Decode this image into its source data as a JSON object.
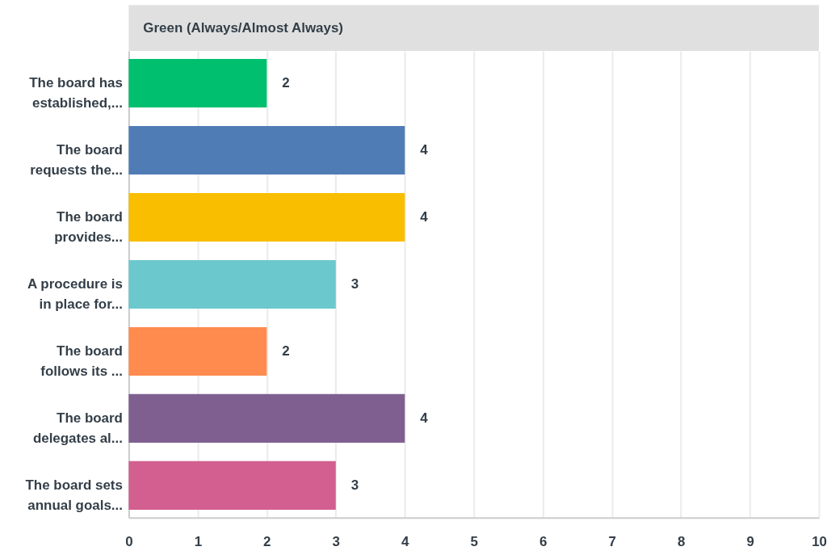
{
  "chart_data": {
    "type": "bar",
    "orientation": "horizontal",
    "title": "Green (Always/Almost Always)",
    "categories": [
      "The board has\nestablished,...",
      "The board\nrequests the...",
      "The board\nprovides...",
      "A procedure is\nin place for...",
      "The board\nfollows its ...",
      "The board\ndelegates al...",
      "The board sets\nannual goals..."
    ],
    "values": [
      2,
      4,
      4,
      3,
      2,
      4,
      3
    ],
    "colors": [
      "#00bf6f",
      "#507cb6",
      "#f9be00",
      "#6bc8cd",
      "#ff8b4f",
      "#7f5f90",
      "#d25f90"
    ],
    "xlim": [
      0,
      10
    ],
    "xticks": [
      0,
      1,
      2,
      3,
      4,
      5,
      6,
      7,
      8,
      9,
      10
    ],
    "grid": "x",
    "data_labels": true
  }
}
